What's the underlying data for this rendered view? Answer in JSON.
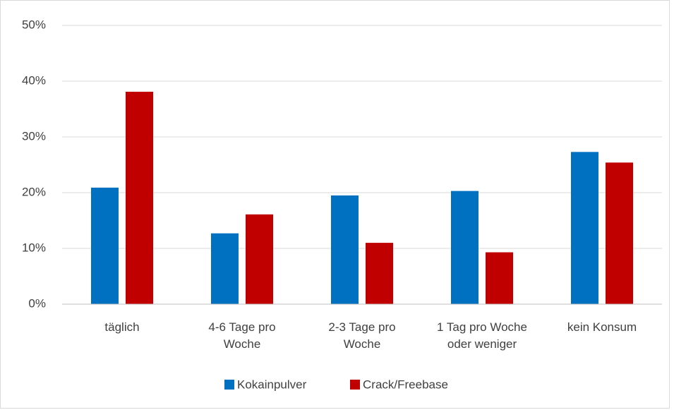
{
  "chart_data": {
    "type": "bar",
    "categories": [
      "täglich",
      "4-6 Tage pro Woche",
      "2-3 Tage pro Woche",
      "1 Tag pro Woche oder weniger",
      "kein Konsum"
    ],
    "series": [
      {
        "name": "Kokainpulver",
        "color": "#0070c0",
        "values": [
          20.9,
          12.7,
          19.5,
          20.3,
          27.3
        ]
      },
      {
        "name": "Crack/Freebase",
        "color": "#c00000",
        "values": [
          38.1,
          16.1,
          11.0,
          9.3,
          25.4
        ]
      }
    ],
    "ylim": [
      0,
      50
    ],
    "yticks": [
      {
        "value": 0,
        "label": "0%"
      },
      {
        "value": 10,
        "label": "10%"
      },
      {
        "value": 20,
        "label": "20%"
      },
      {
        "value": 30,
        "label": "30%"
      },
      {
        "value": 40,
        "label": "40%"
      },
      {
        "value": 50,
        "label": "50%"
      }
    ],
    "grid": true,
    "legend": "bottom"
  }
}
